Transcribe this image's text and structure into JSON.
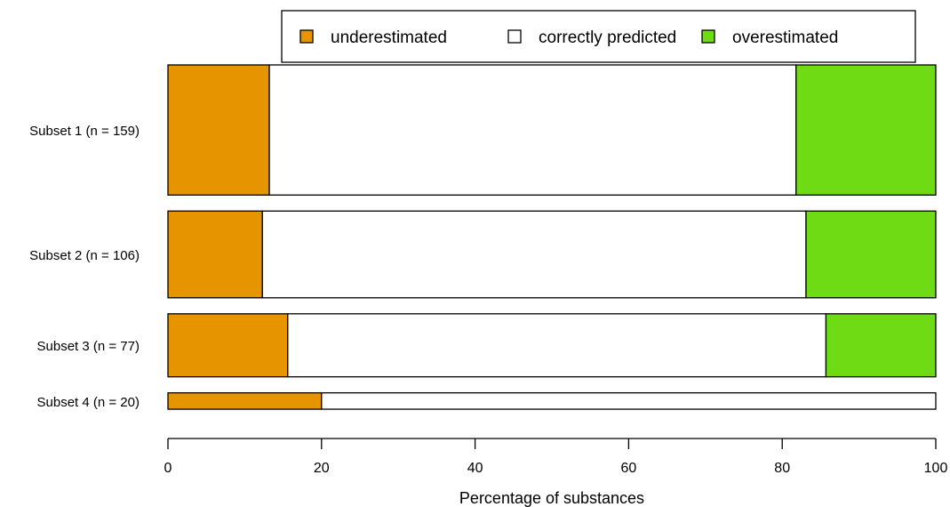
{
  "chart_data": {
    "type": "bar",
    "orientation": "horizontal",
    "stacked": true,
    "categories": [
      "Subset 1 (n = 159)",
      "Subset 2 (n = 106)",
      "Subset 3 (n = 77)",
      "Subset 4 (n = 20)"
    ],
    "series": [
      {
        "name": "underestimated",
        "color": "#E69500",
        "values": [
          13.2,
          12.3,
          15.6,
          20.0
        ]
      },
      {
        "name": "correctly predicted",
        "color": "#FFFFFF",
        "values": [
          68.6,
          70.8,
          70.1,
          80.0
        ]
      },
      {
        "name": "overestimated",
        "color": "#6EDB14",
        "values": [
          18.2,
          16.9,
          14.3,
          0.0
        ]
      }
    ],
    "xlabel": "Percentage of substances",
    "ylabel": "",
    "title": "",
    "xlim": [
      0,
      100
    ],
    "xticks": [
      0,
      20,
      40,
      60,
      80,
      100
    ],
    "bar_widths_relative": [
      159,
      106,
      77,
      20
    ],
    "legend_position": "top",
    "grid": false
  }
}
